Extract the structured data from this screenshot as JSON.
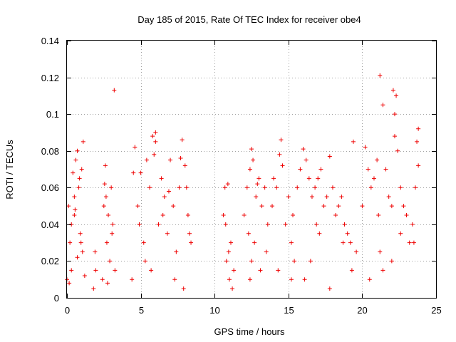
{
  "chart_data": {
    "type": "scatter",
    "title": "Day 185 of 2015, Rate Of TEC Index for receiver obe4",
    "xlabel": "GPS time / hours",
    "ylabel": "ROTI / TECUs",
    "xlim": [
      0,
      25
    ],
    "ylim": [
      0,
      0.14
    ],
    "xticks": [
      0,
      5,
      10,
      15,
      20,
      25
    ],
    "xtick_labels": [
      "0",
      "5",
      "10",
      "15",
      "20",
      "25"
    ],
    "yticks": [
      0,
      0.02,
      0.04,
      0.06,
      0.08,
      0.1,
      0.12,
      0.14
    ],
    "ytick_labels": [
      "0",
      "0.02",
      "0.04",
      "0.06",
      "0.08",
      "0.1",
      "0.12",
      "0.14"
    ],
    "grid": true,
    "marker": "plus",
    "series_color": "#ee0000",
    "series": [
      {
        "name": "ROTI",
        "x": [
          0.0,
          0.1,
          0.2,
          0.3,
          0.4,
          0.5,
          0.6,
          0.7,
          0.8,
          0.9,
          1.0,
          1.1,
          1.2,
          0.3,
          0.5,
          0.7,
          1.05,
          0.15,
          0.55,
          0.85,
          0.95,
          1.8,
          1.9,
          1.95,
          2.4,
          2.5,
          2.6,
          2.7,
          2.8,
          2.9,
          3.0,
          3.1,
          3.2,
          3.25,
          2.55,
          2.75,
          3.05,
          2.65,
          4.4,
          4.6,
          4.8,
          5.0,
          5.2,
          5.4,
          5.6,
          5.8,
          6.0,
          6.2,
          6.4,
          6.6,
          6.8,
          7.0,
          7.2,
          7.4,
          7.6,
          7.8,
          8.0,
          8.2,
          8.4,
          4.5,
          5.9,
          6.0,
          7.7,
          8.1,
          5.3,
          6.5,
          7.3,
          4.9,
          5.7,
          6.9,
          7.9,
          8.3,
          10.6,
          10.7,
          10.8,
          10.9,
          11.0,
          11.1,
          11.2,
          11.3,
          10.75,
          10.95,
          12.0,
          12.2,
          12.4,
          12.5,
          12.6,
          12.8,
          13.0,
          13.2,
          13.4,
          13.6,
          12.5,
          12.4,
          12.7,
          13.1,
          13.5,
          12.3,
          12.9,
          13.9,
          14.0,
          14.2,
          14.4,
          14.5,
          14.6,
          14.8,
          15.0,
          15.2,
          15.3,
          15.4,
          15.2,
          14.3,
          15.6,
          15.8,
          16.0,
          16.2,
          16.4,
          16.6,
          16.8,
          17.0,
          17.2,
          17.4,
          17.6,
          17.8,
          18.0,
          18.2,
          18.4,
          18.6,
          18.8,
          19.0,
          19.2,
          19.4,
          19.6,
          16.1,
          16.5,
          17.8,
          19.3,
          18.7,
          17.1,
          16.9,
          20.0,
          20.2,
          20.4,
          20.6,
          20.8,
          21.0,
          21.2,
          21.4,
          21.6,
          21.8,
          22.0,
          22.2,
          22.4,
          22.6,
          22.8,
          23.0,
          23.2,
          23.4,
          23.6,
          23.8,
          21.1,
          21.2,
          22.1,
          22.2,
          22.3,
          21.4,
          22.6,
          23.7,
          23.8,
          20.5,
          22.0,
          23.5
        ],
        "y": [
          0.01,
          0.05,
          0.03,
          0.015,
          0.068,
          0.045,
          0.075,
          0.022,
          0.06,
          0.035,
          0.07,
          0.085,
          0.012,
          0.04,
          0.055,
          0.08,
          0.025,
          0.008,
          0.048,
          0.065,
          0.03,
          0.005,
          0.025,
          0.015,
          0.01,
          0.05,
          0.072,
          0.03,
          0.045,
          0.02,
          0.06,
          0.04,
          0.113,
          0.015,
          0.062,
          0.008,
          0.035,
          0.055,
          0.01,
          0.082,
          0.05,
          0.068,
          0.03,
          0.075,
          0.06,
          0.088,
          0.085,
          0.04,
          0.065,
          0.055,
          0.035,
          0.075,
          0.05,
          0.025,
          0.06,
          0.086,
          0.072,
          0.045,
          0.03,
          0.068,
          0.078,
          0.09,
          0.076,
          0.06,
          0.02,
          0.045,
          0.01,
          0.04,
          0.015,
          0.058,
          0.005,
          0.035,
          0.045,
          0.06,
          0.02,
          0.062,
          0.01,
          0.03,
          0.005,
          0.015,
          0.04,
          0.025,
          0.045,
          0.06,
          0.07,
          0.081,
          0.075,
          0.055,
          0.065,
          0.05,
          0.06,
          0.04,
          0.02,
          0.01,
          0.03,
          0.015,
          0.025,
          0.035,
          0.062,
          0.05,
          0.065,
          0.06,
          0.078,
          0.086,
          0.072,
          0.04,
          0.055,
          0.03,
          0.045,
          0.02,
          0.01,
          0.015,
          0.06,
          0.07,
          0.081,
          0.075,
          0.065,
          0.055,
          0.06,
          0.065,
          0.07,
          0.05,
          0.055,
          0.077,
          0.06,
          0.045,
          0.05,
          0.055,
          0.04,
          0.035,
          0.03,
          0.085,
          0.025,
          0.01,
          0.02,
          0.005,
          0.015,
          0.03,
          0.035,
          0.04,
          0.05,
          0.082,
          0.07,
          0.06,
          0.065,
          0.075,
          0.121,
          0.105,
          0.07,
          0.055,
          0.05,
          0.088,
          0.08,
          0.06,
          0.05,
          0.045,
          0.03,
          0.04,
          0.06,
          0.092,
          0.045,
          0.025,
          0.113,
          0.1,
          0.11,
          0.015,
          0.035,
          0.085,
          0.072,
          0.01,
          0.02,
          0.03
        ]
      }
    ]
  }
}
